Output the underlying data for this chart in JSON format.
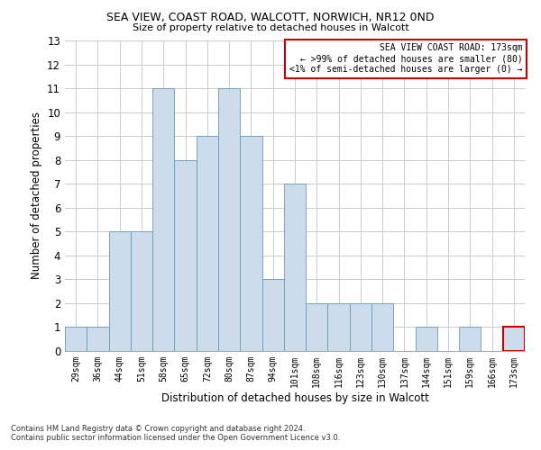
{
  "title1": "SEA VIEW, COAST ROAD, WALCOTT, NORWICH, NR12 0ND",
  "title2": "Size of property relative to detached houses in Walcott",
  "xlabel": "Distribution of detached houses by size in Walcott",
  "ylabel": "Number of detached properties",
  "categories": [
    "29sqm",
    "36sqm",
    "44sqm",
    "51sqm",
    "58sqm",
    "65sqm",
    "72sqm",
    "80sqm",
    "87sqm",
    "94sqm",
    "101sqm",
    "108sqm",
    "116sqm",
    "123sqm",
    "130sqm",
    "137sqm",
    "144sqm",
    "151sqm",
    "159sqm",
    "166sqm",
    "173sqm"
  ],
  "values": [
    1,
    1,
    5,
    5,
    11,
    8,
    9,
    11,
    9,
    3,
    7,
    2,
    2,
    2,
    2,
    0,
    1,
    0,
    1,
    0,
    1
  ],
  "bar_color": "#ccdcec",
  "bar_edge_color": "#6699bb",
  "ylim": [
    0,
    13
  ],
  "yticks": [
    0,
    1,
    2,
    3,
    4,
    5,
    6,
    7,
    8,
    9,
    10,
    11,
    12,
    13
  ],
  "annotation_text": "SEA VIEW COAST ROAD: 173sqm\n← >99% of detached houses are smaller (80)\n<1% of semi-detached houses are larger (0) →",
  "annotation_box_color": "#cc0000",
  "highlight_bar_index": 20,
  "footnote1": "Contains HM Land Registry data © Crown copyright and database right 2024.",
  "footnote2": "Contains public sector information licensed under the Open Government Licence v3.0.",
  "grid_color": "#cccccc",
  "bg_color": "#ffffff"
}
